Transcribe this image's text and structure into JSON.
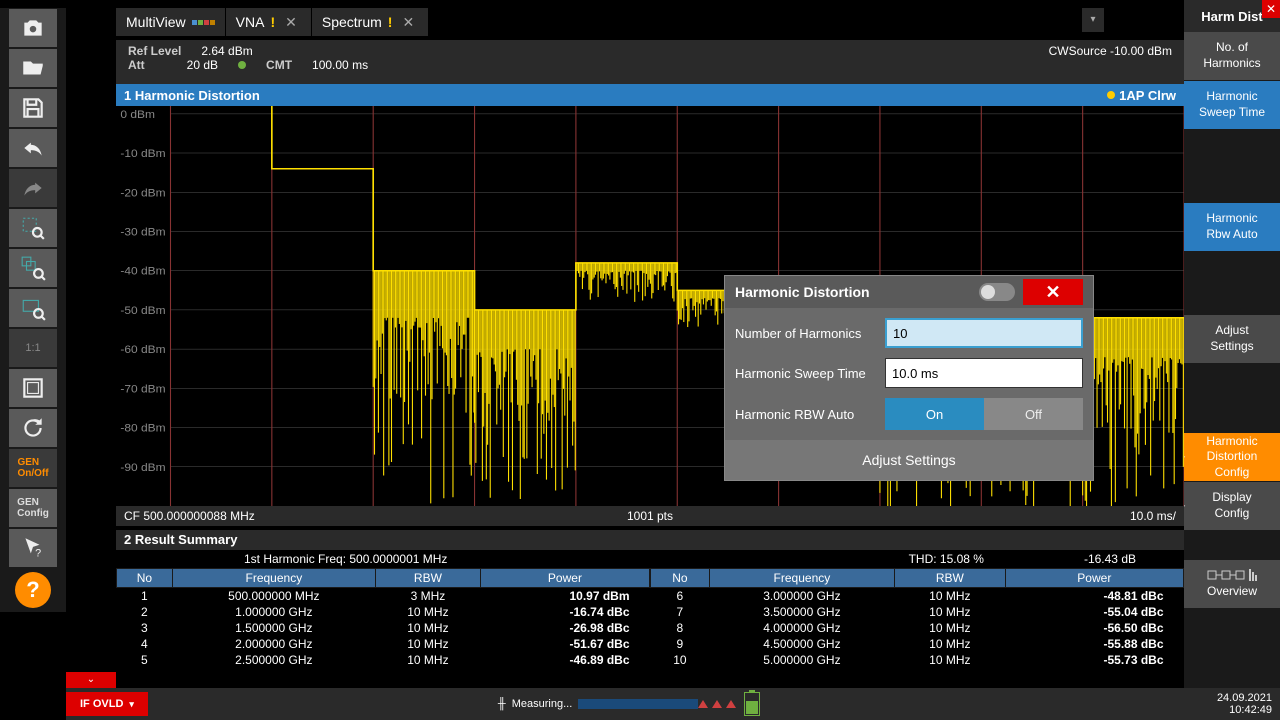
{
  "tabs": [
    {
      "label": "MultiView",
      "has_grid": true
    },
    {
      "label": "VNA",
      "warn": true,
      "closable": true
    },
    {
      "label": "Spectrum",
      "warn": true,
      "closable": true
    }
  ],
  "right_panel": {
    "title": "Harm Dist",
    "buttons": {
      "no_harmonics": "No. of\nHarmonics",
      "sweep_time": "Harmonic\nSweep Time",
      "rbw_auto": "Harmonic\nRbw Auto",
      "adjust": "Adjust\nSettings",
      "dist_config": "Harmonic\nDistortion\nConfig",
      "display_config": "Display\nConfig",
      "overview": "Overview"
    }
  },
  "info": {
    "ref_level_label": "Ref Level",
    "ref_level": "2.64 dBm",
    "att_label": "Att",
    "att": "20 dB",
    "cmt_label": "CMT",
    "cmt": "100.00 ms",
    "cw_source": "CWSource -10.00 dBm"
  },
  "chart": {
    "type": "spectrum_step",
    "title": "1 Harmonic Distortion",
    "marker_label": "1AP Clrw",
    "ylim": [
      -100,
      2
    ],
    "yticks": [
      "0 dBm",
      "-10 dBm",
      "-20 dBm",
      "-30 dBm",
      "-40 dBm",
      "-50 dBm",
      "-60 dBm",
      "-70 dBm",
      "-80 dBm",
      "-90 dBm"
    ],
    "segments": 10,
    "trace_color": "#ffe000",
    "grid_color": "#555555",
    "segment_color": "#883333",
    "background": "#000000",
    "step_levels_db": [
      2.6,
      -14,
      -40,
      -50,
      -38,
      -45,
      -46,
      -52,
      -53,
      -52
    ],
    "noise_depth_db": [
      0,
      0,
      60,
      50,
      10,
      10,
      8,
      55,
      50,
      50
    ],
    "footer": {
      "cf": "CF 500.000000088 MHz",
      "pts": "1001 pts",
      "sweep": "10.0 ms/"
    }
  },
  "results": {
    "title": "2 Result Summary",
    "meta": {
      "freq": "1st Harmonic Freq: 500.0000001 MHz",
      "thd_pct": "THD: 15.08 %",
      "thd_db": "-16.43 dB"
    },
    "columns": [
      "No",
      "Frequency",
      "RBW",
      "Power"
    ],
    "rows_left": [
      [
        "1",
        "500.000000 MHz",
        "3 MHz",
        "10.97 dBm"
      ],
      [
        "2",
        "1.000000 GHz",
        "10 MHz",
        "-16.74 dBc"
      ],
      [
        "3",
        "1.500000 GHz",
        "10 MHz",
        "-26.98 dBc"
      ],
      [
        "4",
        "2.000000 GHz",
        "10 MHz",
        "-51.67 dBc"
      ],
      [
        "5",
        "2.500000 GHz",
        "10 MHz",
        "-46.89 dBc"
      ]
    ],
    "rows_right": [
      [
        "6",
        "3.000000 GHz",
        "10 MHz",
        "-48.81 dBc"
      ],
      [
        "7",
        "3.500000 GHz",
        "10 MHz",
        "-55.04 dBc"
      ],
      [
        "8",
        "4.000000 GHz",
        "10 MHz",
        "-56.50 dBc"
      ],
      [
        "9",
        "4.500000 GHz",
        "10 MHz",
        "-55.88 dBc"
      ],
      [
        "10",
        "5.000000 GHz",
        "10 MHz",
        "-55.73 dBc"
      ]
    ]
  },
  "dialog": {
    "title": "Harmonic Distortion",
    "fields": {
      "num_label": "Number of Harmonics",
      "num_value": "10",
      "sweep_label": "Harmonic Sweep Time",
      "sweep_value": "10.0 ms",
      "rbw_label": "Harmonic RBW Auto",
      "on": "On",
      "off": "Off"
    },
    "adjust": "Adjust Settings"
  },
  "bottom": {
    "if_ovld": "IF OVLD",
    "measuring": "Measuring...",
    "date": "24.09.2021",
    "time": "10:42:49"
  }
}
